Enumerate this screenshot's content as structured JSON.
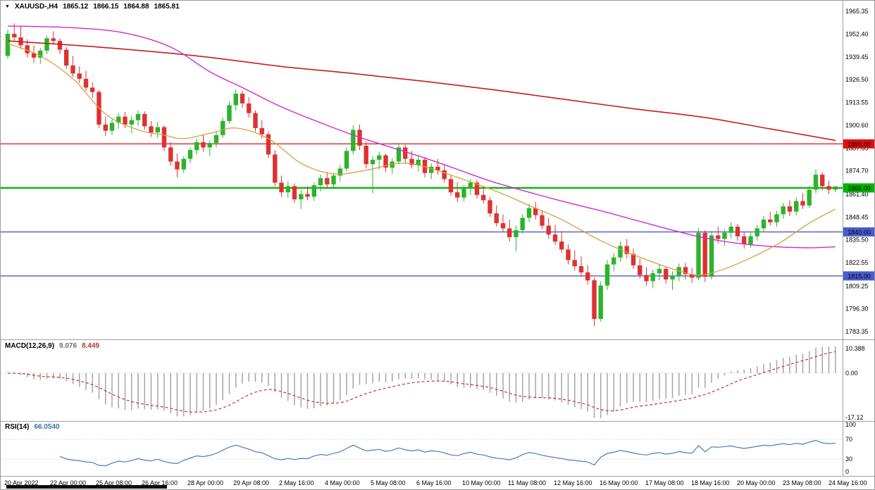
{
  "titlebar": {
    "dropdown_icon": "▼",
    "symbol_timeframe": "XAUUSD-,H4",
    "open": "1865.12",
    "high": "1866.15",
    "low": "1864.88",
    "close": "1865.81"
  },
  "colors": {
    "background": "#ffffff",
    "separator": "#a0a0a0",
    "grid_dotted": "#c8c8c8",
    "text": "#000000"
  },
  "chart_data": [
    {
      "type": "candlestick",
      "title": "XAUUSD- H4 price chart",
      "ylim": [
        1783.35,
        1965.35
      ],
      "up_color": "#2bb42b",
      "down_color": "#dc3232",
      "price_axis_labels": [
        "1965.35",
        "1952.40",
        "1939.45",
        "1926.50",
        "1913.55",
        "1900.60",
        "1887.65",
        "1874.70",
        "1861.40",
        "1848.45",
        "1835.50",
        "1822.55",
        "1809.25",
        "1796.30",
        "1783.35"
      ],
      "horizontal_levels": [
        {
          "price": 1890.0,
          "label": "1890.00",
          "color": "#dd1111",
          "width": 1.3
        },
        {
          "price": 1865.0,
          "label": "1865.00",
          "color": "#00b400",
          "width": 2.2
        },
        {
          "price": 1840.0,
          "label": "1840.00",
          "color": "#4a5ccc",
          "width": 1.4
        },
        {
          "price": 1815.0,
          "label": "1815.00",
          "color": "#4a5ccc",
          "width": 1.4
        }
      ],
      "moving_averages": [
        {
          "name": "ma-long-red",
          "color": "#c41e1e",
          "width": 1.6,
          "points": [
            [
              0,
              1948.5
            ],
            [
              14,
              1945
            ],
            [
              29,
              1940
            ],
            [
              42,
              1934
            ],
            [
              53,
              1930
            ],
            [
              64,
              1925.5
            ],
            [
              75,
              1920.5
            ],
            [
              85,
              1915.5
            ],
            [
              96,
              1910
            ],
            [
              107,
              1905
            ],
            [
              117,
              1898.5
            ],
            [
              127,
              1892
            ]
          ]
        },
        {
          "name": "ma-mid-magenta",
          "color": "#d428d4",
          "width": 1.4,
          "points": [
            [
              0,
              1957
            ],
            [
              10,
              1956
            ],
            [
              18,
              1953
            ],
            [
              25,
              1945
            ],
            [
              31,
              1931
            ],
            [
              36,
              1922
            ],
            [
              42,
              1911
            ],
            [
              48,
              1902
            ],
            [
              53,
              1895
            ],
            [
              58,
              1889
            ],
            [
              64,
              1882
            ],
            [
              69,
              1875.5
            ],
            [
              74,
              1869
            ],
            [
              80,
              1862.5
            ],
            [
              85,
              1857.5
            ],
            [
              91,
              1852
            ],
            [
              96,
              1847
            ],
            [
              102,
              1841
            ],
            [
              107,
              1836.5
            ],
            [
              112,
              1833.5
            ],
            [
              118,
              1831.5
            ],
            [
              123,
              1831
            ],
            [
              127,
              1831.5
            ]
          ]
        },
        {
          "name": "ma-fast-orange",
          "color": "#d8a040",
          "width": 1.3,
          "points": [
            [
              0,
              1947
            ],
            [
              5,
              1940
            ],
            [
              10,
              1927
            ],
            [
              15,
              1907
            ],
            [
              20,
              1898
            ],
            [
              24,
              1895
            ],
            [
              27,
              1893
            ],
            [
              31,
              1896
            ],
            [
              35,
              1899
            ],
            [
              40,
              1893
            ],
            [
              45,
              1879
            ],
            [
              50,
              1873
            ],
            [
              55,
              1875
            ],
            [
              60,
              1879
            ],
            [
              64,
              1877
            ],
            [
              69,
              1871
            ],
            [
              75,
              1863
            ],
            [
              80,
              1855
            ],
            [
              85,
              1847
            ],
            [
              91,
              1835
            ],
            [
              96,
              1827
            ],
            [
              102,
              1819
            ],
            [
              106,
              1815.5
            ],
            [
              110,
              1819
            ],
            [
              115,
              1827
            ],
            [
              119,
              1835
            ],
            [
              123,
              1845
            ],
            [
              127,
              1853
            ]
          ]
        }
      ],
      "candles_ohlc": [
        [
          1940,
          1955,
          1938.5,
          1952.5
        ],
        [
          1952.5,
          1958.5,
          1948,
          1950.5
        ],
        [
          1950.5,
          1957,
          1944,
          1946
        ],
        [
          1946,
          1949.5,
          1939,
          1941.5
        ],
        [
          1941.5,
          1946,
          1936,
          1939
        ],
        [
          1939,
          1944.5,
          1935.5,
          1943
        ],
        [
          1943,
          1951.5,
          1941,
          1950
        ],
        [
          1950,
          1954,
          1946.5,
          1948.5
        ],
        [
          1948.5,
          1950,
          1941,
          1943.5
        ],
        [
          1943.5,
          1945,
          1932.5,
          1934.5
        ],
        [
          1934.5,
          1940,
          1928,
          1930
        ],
        [
          1930,
          1934,
          1924.5,
          1927
        ],
        [
          1927,
          1931.5,
          1920,
          1922
        ],
        [
          1922,
          1925,
          1916,
          1919.5
        ],
        [
          1919.5,
          1920.5,
          1899,
          1901
        ],
        [
          1901,
          1905.5,
          1894.5,
          1897.5
        ],
        [
          1897.5,
          1904,
          1895,
          1902
        ],
        [
          1902,
          1907.5,
          1898.5,
          1905.5
        ],
        [
          1905.5,
          1908,
          1899,
          1901
        ],
        [
          1901,
          1906,
          1896,
          1903.5
        ],
        [
          1903.5,
          1909,
          1900.5,
          1907
        ],
        [
          1907,
          1908.5,
          1898,
          1900
        ],
        [
          1900,
          1903,
          1894,
          1896.5
        ],
        [
          1896.5,
          1902.5,
          1893.5,
          1899.5
        ],
        [
          1899.5,
          1900.5,
          1886,
          1888
        ],
        [
          1888,
          1891,
          1877.5,
          1880
        ],
        [
          1880,
          1884.5,
          1871,
          1875.5
        ],
        [
          1875.5,
          1883,
          1873.5,
          1881.5
        ],
        [
          1881.5,
          1888,
          1879,
          1886.5
        ],
        [
          1886.5,
          1893,
          1884,
          1891
        ],
        [
          1891,
          1895.5,
          1885.5,
          1888
        ],
        [
          1888,
          1892,
          1883,
          1890.5
        ],
        [
          1890.5,
          1897,
          1888,
          1895
        ],
        [
          1895,
          1905,
          1893.5,
          1903
        ],
        [
          1903,
          1914,
          1901.5,
          1912
        ],
        [
          1912,
          1921,
          1909,
          1918.5
        ],
        [
          1918.5,
          1920,
          1910.5,
          1913
        ],
        [
          1913,
          1916.5,
          1905,
          1907.5
        ],
        [
          1907.5,
          1909,
          1897,
          1899
        ],
        [
          1899,
          1903.5,
          1893,
          1895.5
        ],
        [
          1895.5,
          1897,
          1882,
          1884
        ],
        [
          1884,
          1886.5,
          1866,
          1868
        ],
        [
          1868,
          1872,
          1860,
          1862.5
        ],
        [
          1862.5,
          1868.5,
          1859.5,
          1866
        ],
        [
          1866,
          1867.5,
          1856.5,
          1858.5
        ],
        [
          1858.5,
          1864,
          1853,
          1861.5
        ],
        [
          1861.5,
          1866,
          1858,
          1860
        ],
        [
          1860,
          1868,
          1857.5,
          1866.5
        ],
        [
          1866.5,
          1872.5,
          1863,
          1870.5
        ],
        [
          1870.5,
          1874,
          1864.5,
          1867
        ],
        [
          1867,
          1873.5,
          1865,
          1872
        ],
        [
          1872,
          1878,
          1868.5,
          1876
        ],
        [
          1876,
          1888,
          1874.5,
          1886
        ],
        [
          1886,
          1900.5,
          1884,
          1898
        ],
        [
          1898,
          1901,
          1886.5,
          1889
        ],
        [
          1889,
          1891.5,
          1876,
          1878.5
        ],
        [
          1878.5,
          1883,
          1862,
          1881
        ],
        [
          1881,
          1885.5,
          1875.5,
          1883.5
        ],
        [
          1883.5,
          1884.5,
          1874,
          1876.5
        ],
        [
          1876.5,
          1882,
          1873,
          1880
        ],
        [
          1880,
          1890.5,
          1878.5,
          1888
        ],
        [
          1888,
          1889.5,
          1879,
          1881.5
        ],
        [
          1881.5,
          1886,
          1876,
          1878
        ],
        [
          1878,
          1883.5,
          1874.5,
          1881
        ],
        [
          1881,
          1882.5,
          1871,
          1873.5
        ],
        [
          1873.5,
          1879,
          1870,
          1877
        ],
        [
          1877,
          1881.5,
          1872.5,
          1875
        ],
        [
          1875,
          1878.5,
          1868,
          1870
        ],
        [
          1870,
          1872,
          1860.5,
          1862.5
        ],
        [
          1862.5,
          1868,
          1857,
          1859.5
        ],
        [
          1859.5,
          1866.5,
          1857.5,
          1864.5
        ],
        [
          1864.5,
          1870,
          1861,
          1868
        ],
        [
          1868,
          1869.5,
          1859,
          1861
        ],
        [
          1861,
          1866,
          1856,
          1858
        ],
        [
          1858,
          1860,
          1848.5,
          1850.5
        ],
        [
          1850.5,
          1855,
          1843,
          1845
        ],
        [
          1845,
          1850,
          1840,
          1842
        ],
        [
          1842,
          1847,
          1834.5,
          1837
        ],
        [
          1837,
          1843.5,
          1829,
          1841
        ],
        [
          1841,
          1850,
          1839,
          1848
        ],
        [
          1848,
          1856,
          1845.5,
          1853.5
        ],
        [
          1853.5,
          1857,
          1847,
          1849.5
        ],
        [
          1849.5,
          1852.5,
          1841.5,
          1843.5
        ],
        [
          1843.5,
          1848,
          1836,
          1838.5
        ],
        [
          1838.5,
          1844,
          1832.5,
          1834.5
        ],
        [
          1834.5,
          1840.5,
          1828,
          1830
        ],
        [
          1830,
          1833,
          1821.5,
          1824
        ],
        [
          1824,
          1829.5,
          1818,
          1820.5
        ],
        [
          1820.5,
          1826,
          1814.5,
          1817
        ],
        [
          1817,
          1821,
          1810,
          1812.5
        ],
        [
          1812.5,
          1814,
          1786.5,
          1790.5
        ],
        [
          1790.5,
          1812,
          1789,
          1809.5
        ],
        [
          1809.5,
          1824,
          1807,
          1821.5
        ],
        [
          1821.5,
          1828,
          1817.5,
          1825.5
        ],
        [
          1825.5,
          1834.5,
          1823,
          1832
        ],
        [
          1832,
          1836,
          1825,
          1827.5
        ],
        [
          1827.5,
          1830.5,
          1819,
          1821
        ],
        [
          1821,
          1825,
          1813.5,
          1815.5
        ],
        [
          1815.5,
          1820,
          1809.5,
          1812
        ],
        [
          1812,
          1818.5,
          1808,
          1816.5
        ],
        [
          1816.5,
          1821.5,
          1812.5,
          1819
        ],
        [
          1819,
          1820.5,
          1810.5,
          1813
        ],
        [
          1813,
          1817.5,
          1807,
          1815
        ],
        [
          1815,
          1822,
          1812,
          1820
        ],
        [
          1820,
          1822.5,
          1813,
          1816
        ],
        [
          1816,
          1819.5,
          1811,
          1814
        ],
        [
          1814,
          1842,
          1812.5,
          1839.5
        ],
        [
          1839.5,
          1841,
          1811.5,
          1814.5
        ],
        [
          1814.5,
          1840.5,
          1813,
          1838
        ],
        [
          1838,
          1843,
          1833.5,
          1836
        ],
        [
          1836,
          1841.5,
          1832,
          1839.5
        ],
        [
          1839.5,
          1845.5,
          1836.5,
          1843
        ],
        [
          1843,
          1844.5,
          1835,
          1837.5
        ],
        [
          1837.5,
          1840,
          1830.5,
          1833
        ],
        [
          1833,
          1839.5,
          1831,
          1837.5
        ],
        [
          1837.5,
          1844,
          1835,
          1842
        ],
        [
          1842,
          1849,
          1840,
          1847
        ],
        [
          1847,
          1851.5,
          1843.5,
          1845.5
        ],
        [
          1845.5,
          1852,
          1843,
          1850
        ],
        [
          1850,
          1856.5,
          1847.5,
          1854.5
        ],
        [
          1854.5,
          1858,
          1849,
          1851.5
        ],
        [
          1851.5,
          1859.5,
          1849.5,
          1857.5
        ],
        [
          1857.5,
          1862,
          1853,
          1855
        ],
        [
          1855,
          1866,
          1853.5,
          1864
        ],
        [
          1864,
          1875.5,
          1862,
          1872.5
        ],
        [
          1872.5,
          1874,
          1863.5,
          1866
        ],
        [
          1866,
          1869,
          1861.5,
          1864
        ],
        [
          1864,
          1866.2,
          1862.5,
          1865.8
        ]
      ]
    },
    {
      "type": "macd-histogram",
      "label": "MACD(12,26,9)",
      "fast_period": 12,
      "slow_period": 26,
      "signal_period": 9,
      "macd_value": "9.076",
      "signal_value": "8.449",
      "axis_max_label": "10.388",
      "axis_zero_label": "0.00",
      "axis_min_label": "-17.12",
      "histogram_color": "#a6a6a6",
      "signal_color": "#cc3333"
    },
    {
      "type": "rsi-line",
      "label": "RSI(14)",
      "period": 14,
      "value": "66.0540",
      "axis_labels": [
        "100",
        "70",
        "30",
        "0"
      ],
      "overbought_level": 70,
      "oversold_level": 30,
      "line_color": "#4a7db5"
    }
  ],
  "time_axis": {
    "labels": [
      "20 Apr 2022",
      "22 Apr 00:00",
      "25 Apr 08:00",
      "26 Apr 16:00",
      "28 Apr 00:00",
      "29 Apr 08:00",
      "2 May 16:00",
      "4 May 00:00",
      "5 May 08:00",
      "6 May 16:00",
      "10 May 00:00",
      "11 May 08:00",
      "12 May 16:00",
      "16 May 00:00",
      "17 May 08:00",
      "18 May 16:00",
      "20 May 00:00",
      "23 May 08:00",
      "24 May 16:00"
    ]
  }
}
